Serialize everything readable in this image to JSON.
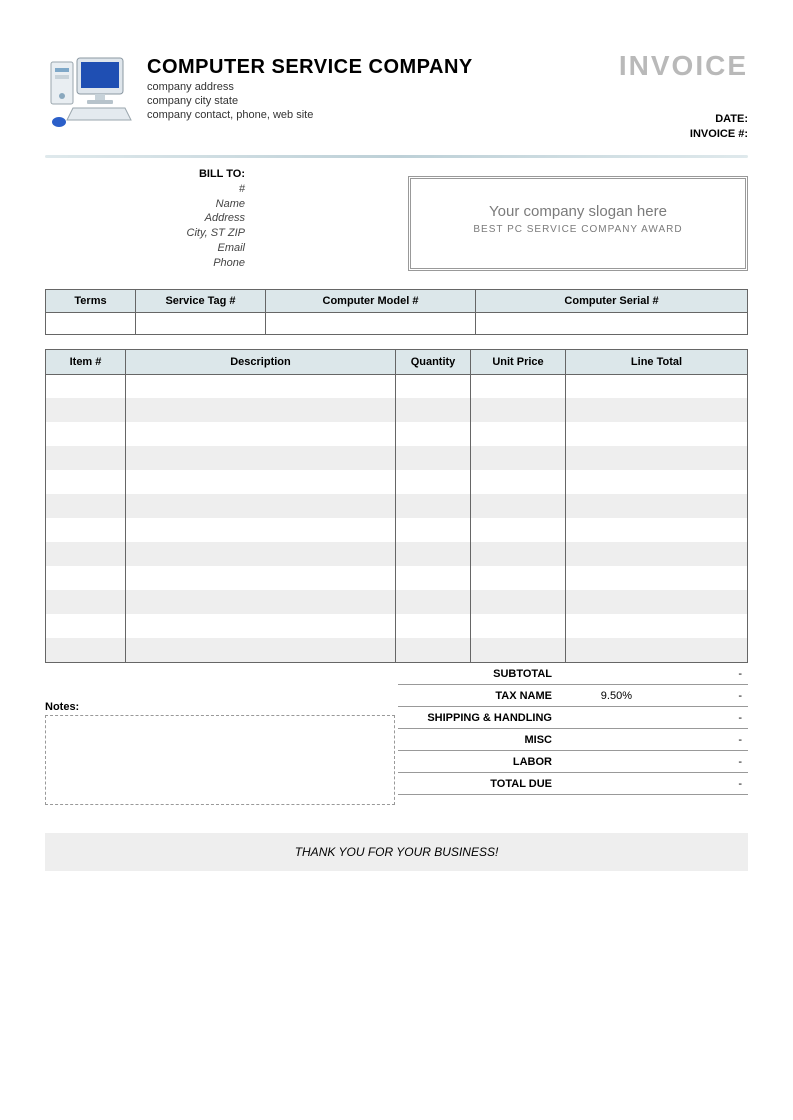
{
  "company": {
    "name": "COMPUTER SERVICE COMPANY",
    "line1": "company address",
    "line2": "company city state",
    "line3": "company contact, phone, web site"
  },
  "document": {
    "title": "INVOICE",
    "date_label": "DATE:",
    "date_value": "",
    "number_label": "INVOICE #:",
    "number_value": ""
  },
  "billto": {
    "heading": "BILL TO:",
    "fields": [
      "#",
      "Name",
      "Address",
      "City, ST ZIP",
      "Email",
      "Phone"
    ]
  },
  "slogan": {
    "main": "Your company slogan here",
    "sub": "BEST PC SERVICE COMPANY AWARD"
  },
  "meta_table": {
    "headers": [
      "Terms",
      "Service Tag #",
      "Computer Model #",
      "Computer Serial #"
    ],
    "row": [
      "",
      "",
      "",
      ""
    ]
  },
  "items_table": {
    "headers": [
      "Item #",
      "Description",
      "Quantity",
      "Unit Price",
      "Line Total"
    ],
    "row_count": 12,
    "stripe_color": "#eeeeee",
    "header_bg": "#dce7ea",
    "border_color": "#666666"
  },
  "notes": {
    "label": "Notes:"
  },
  "totals": {
    "rows": [
      {
        "label": "SUBTOTAL",
        "rate": "",
        "value": "-"
      },
      {
        "label": "TAX NAME",
        "rate": "9.50%",
        "value": "-"
      },
      {
        "label": "SHIPPING & HANDLING",
        "rate": "",
        "value": "-"
      },
      {
        "label": "MISC",
        "rate": "",
        "value": "-"
      },
      {
        "label": "LABOR",
        "rate": "",
        "value": "-"
      },
      {
        "label": "TOTAL DUE",
        "rate": "",
        "value": "-"
      }
    ]
  },
  "footer": {
    "thanks": "THANK YOU FOR YOUR BUSINESS!"
  },
  "colors": {
    "invoice_title": "#b9b9b9",
    "divider_mid": "#bdd0d7",
    "slogan_text": "#7b7b7b"
  }
}
